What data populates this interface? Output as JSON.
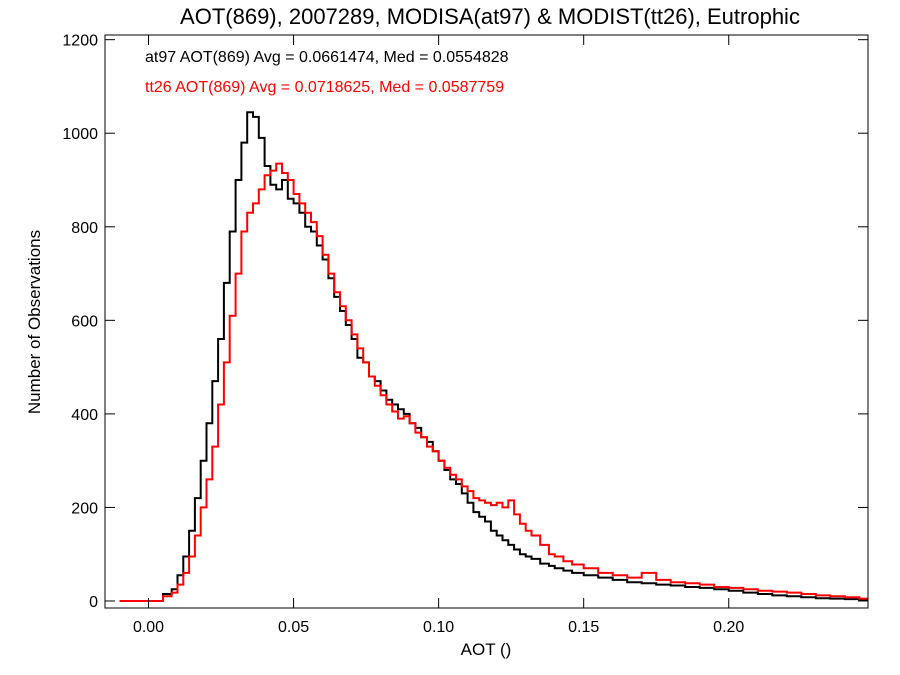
{
  "chart_data": {
    "type": "line",
    "title": "AOT(869), 2007289, MODISA(at97) & MODIST(tt26), Eutrophic",
    "xlabel": "AOT ()",
    "ylabel": "Number of Observations",
    "xlim": [
      -0.015,
      0.248
    ],
    "ylim": [
      -15,
      1210
    ],
    "x_ticks": [
      0.0,
      0.05,
      0.1,
      0.15,
      0.2
    ],
    "x_tick_labels": [
      "0.00",
      "0.05",
      "0.10",
      "0.15",
      "0.20"
    ],
    "y_ticks": [
      0,
      200,
      400,
      600,
      800,
      1000,
      1200
    ],
    "y_tick_labels": [
      "0",
      "200",
      "400",
      "600",
      "800",
      "1000",
      "1200"
    ],
    "grid": false,
    "legend_placement": "top-left",
    "step": true,
    "series": [
      {
        "name": "at97",
        "color": "#000000",
        "legend_text": "at97 AOT(869) Avg = 0.0661474, Med = 0.0554828",
        "points": [
          [
            -0.01,
            0
          ],
          [
            0.0,
            0
          ],
          [
            0.005,
            15
          ],
          [
            0.008,
            25
          ],
          [
            0.01,
            55
          ],
          [
            0.012,
            95
          ],
          [
            0.014,
            150
          ],
          [
            0.016,
            220
          ],
          [
            0.018,
            300
          ],
          [
            0.02,
            380
          ],
          [
            0.022,
            470
          ],
          [
            0.024,
            560
          ],
          [
            0.026,
            680
          ],
          [
            0.028,
            790
          ],
          [
            0.03,
            900
          ],
          [
            0.032,
            980
          ],
          [
            0.034,
            1045
          ],
          [
            0.036,
            1035
          ],
          [
            0.038,
            990
          ],
          [
            0.04,
            930
          ],
          [
            0.042,
            890
          ],
          [
            0.044,
            880
          ],
          [
            0.046,
            900
          ],
          [
            0.048,
            860
          ],
          [
            0.05,
            850
          ],
          [
            0.052,
            830
          ],
          [
            0.054,
            800
          ],
          [
            0.056,
            790
          ],
          [
            0.058,
            760
          ],
          [
            0.06,
            730
          ],
          [
            0.062,
            690
          ],
          [
            0.064,
            650
          ],
          [
            0.066,
            620
          ],
          [
            0.068,
            590
          ],
          [
            0.07,
            560
          ],
          [
            0.072,
            520
          ],
          [
            0.074,
            510
          ],
          [
            0.076,
            480
          ],
          [
            0.078,
            470
          ],
          [
            0.08,
            450
          ],
          [
            0.082,
            430
          ],
          [
            0.084,
            420
          ],
          [
            0.086,
            410
          ],
          [
            0.088,
            400
          ],
          [
            0.09,
            380
          ],
          [
            0.092,
            370
          ],
          [
            0.094,
            350
          ],
          [
            0.096,
            340
          ],
          [
            0.098,
            320
          ],
          [
            0.1,
            300
          ],
          [
            0.102,
            280
          ],
          [
            0.104,
            260
          ],
          [
            0.106,
            250
          ],
          [
            0.108,
            230
          ],
          [
            0.11,
            210
          ],
          [
            0.112,
            190
          ],
          [
            0.114,
            180
          ],
          [
            0.116,
            170
          ],
          [
            0.118,
            150
          ],
          [
            0.12,
            140
          ],
          [
            0.122,
            130
          ],
          [
            0.124,
            120
          ],
          [
            0.126,
            110
          ],
          [
            0.128,
            100
          ],
          [
            0.13,
            95
          ],
          [
            0.132,
            90
          ],
          [
            0.135,
            80
          ],
          [
            0.138,
            75
          ],
          [
            0.14,
            70
          ],
          [
            0.143,
            65
          ],
          [
            0.146,
            60
          ],
          [
            0.15,
            55
          ],
          [
            0.155,
            50
          ],
          [
            0.16,
            45
          ],
          [
            0.165,
            40
          ],
          [
            0.17,
            38
          ],
          [
            0.175,
            35
          ],
          [
            0.18,
            33
          ],
          [
            0.185,
            30
          ],
          [
            0.19,
            28
          ],
          [
            0.195,
            25
          ],
          [
            0.2,
            22
          ],
          [
            0.205,
            18
          ],
          [
            0.21,
            15
          ],
          [
            0.215,
            12
          ],
          [
            0.22,
            10
          ],
          [
            0.225,
            8
          ],
          [
            0.23,
            6
          ],
          [
            0.235,
            5
          ],
          [
            0.24,
            4
          ],
          [
            0.245,
            3
          ]
        ]
      },
      {
        "name": "tt26",
        "color": "#ff0000",
        "legend_text": "tt26 AOT(869) Avg = 0.0718625, Med = 0.0587759",
        "points": [
          [
            -0.01,
            0
          ],
          [
            0.0,
            0
          ],
          [
            0.005,
            10
          ],
          [
            0.008,
            18
          ],
          [
            0.01,
            35
          ],
          [
            0.012,
            60
          ],
          [
            0.014,
            95
          ],
          [
            0.016,
            140
          ],
          [
            0.018,
            200
          ],
          [
            0.02,
            260
          ],
          [
            0.022,
            330
          ],
          [
            0.024,
            420
          ],
          [
            0.026,
            510
          ],
          [
            0.028,
            610
          ],
          [
            0.03,
            700
          ],
          [
            0.032,
            790
          ],
          [
            0.034,
            830
          ],
          [
            0.036,
            850
          ],
          [
            0.038,
            880
          ],
          [
            0.04,
            910
          ],
          [
            0.042,
            920
          ],
          [
            0.044,
            935
          ],
          [
            0.046,
            915
          ],
          [
            0.048,
            900
          ],
          [
            0.05,
            870
          ],
          [
            0.052,
            850
          ],
          [
            0.054,
            830
          ],
          [
            0.056,
            810
          ],
          [
            0.058,
            780
          ],
          [
            0.06,
            740
          ],
          [
            0.062,
            700
          ],
          [
            0.064,
            660
          ],
          [
            0.066,
            630
          ],
          [
            0.068,
            600
          ],
          [
            0.07,
            570
          ],
          [
            0.072,
            540
          ],
          [
            0.074,
            510
          ],
          [
            0.076,
            480
          ],
          [
            0.078,
            460
          ],
          [
            0.08,
            440
          ],
          [
            0.082,
            420
          ],
          [
            0.084,
            405
          ],
          [
            0.086,
            390
          ],
          [
            0.088,
            395
          ],
          [
            0.09,
            380
          ],
          [
            0.092,
            360
          ],
          [
            0.094,
            350
          ],
          [
            0.096,
            330
          ],
          [
            0.098,
            320
          ],
          [
            0.1,
            300
          ],
          [
            0.102,
            285
          ],
          [
            0.104,
            270
          ],
          [
            0.106,
            260
          ],
          [
            0.108,
            245
          ],
          [
            0.11,
            235
          ],
          [
            0.112,
            220
          ],
          [
            0.114,
            215
          ],
          [
            0.116,
            210
          ],
          [
            0.118,
            205
          ],
          [
            0.12,
            210
          ],
          [
            0.122,
            200
          ],
          [
            0.124,
            215
          ],
          [
            0.126,
            185
          ],
          [
            0.128,
            165
          ],
          [
            0.13,
            150
          ],
          [
            0.132,
            140
          ],
          [
            0.135,
            120
          ],
          [
            0.138,
            100
          ],
          [
            0.14,
            95
          ],
          [
            0.143,
            85
          ],
          [
            0.146,
            78
          ],
          [
            0.15,
            70
          ],
          [
            0.155,
            60
          ],
          [
            0.16,
            55
          ],
          [
            0.165,
            50
          ],
          [
            0.17,
            60
          ],
          [
            0.175,
            45
          ],
          [
            0.18,
            40
          ],
          [
            0.185,
            38
          ],
          [
            0.19,
            35
          ],
          [
            0.195,
            30
          ],
          [
            0.2,
            28
          ],
          [
            0.205,
            25
          ],
          [
            0.21,
            22
          ],
          [
            0.215,
            20
          ],
          [
            0.22,
            18
          ],
          [
            0.225,
            15
          ],
          [
            0.23,
            12
          ],
          [
            0.235,
            10
          ],
          [
            0.24,
            8
          ],
          [
            0.245,
            5
          ]
        ]
      }
    ]
  }
}
